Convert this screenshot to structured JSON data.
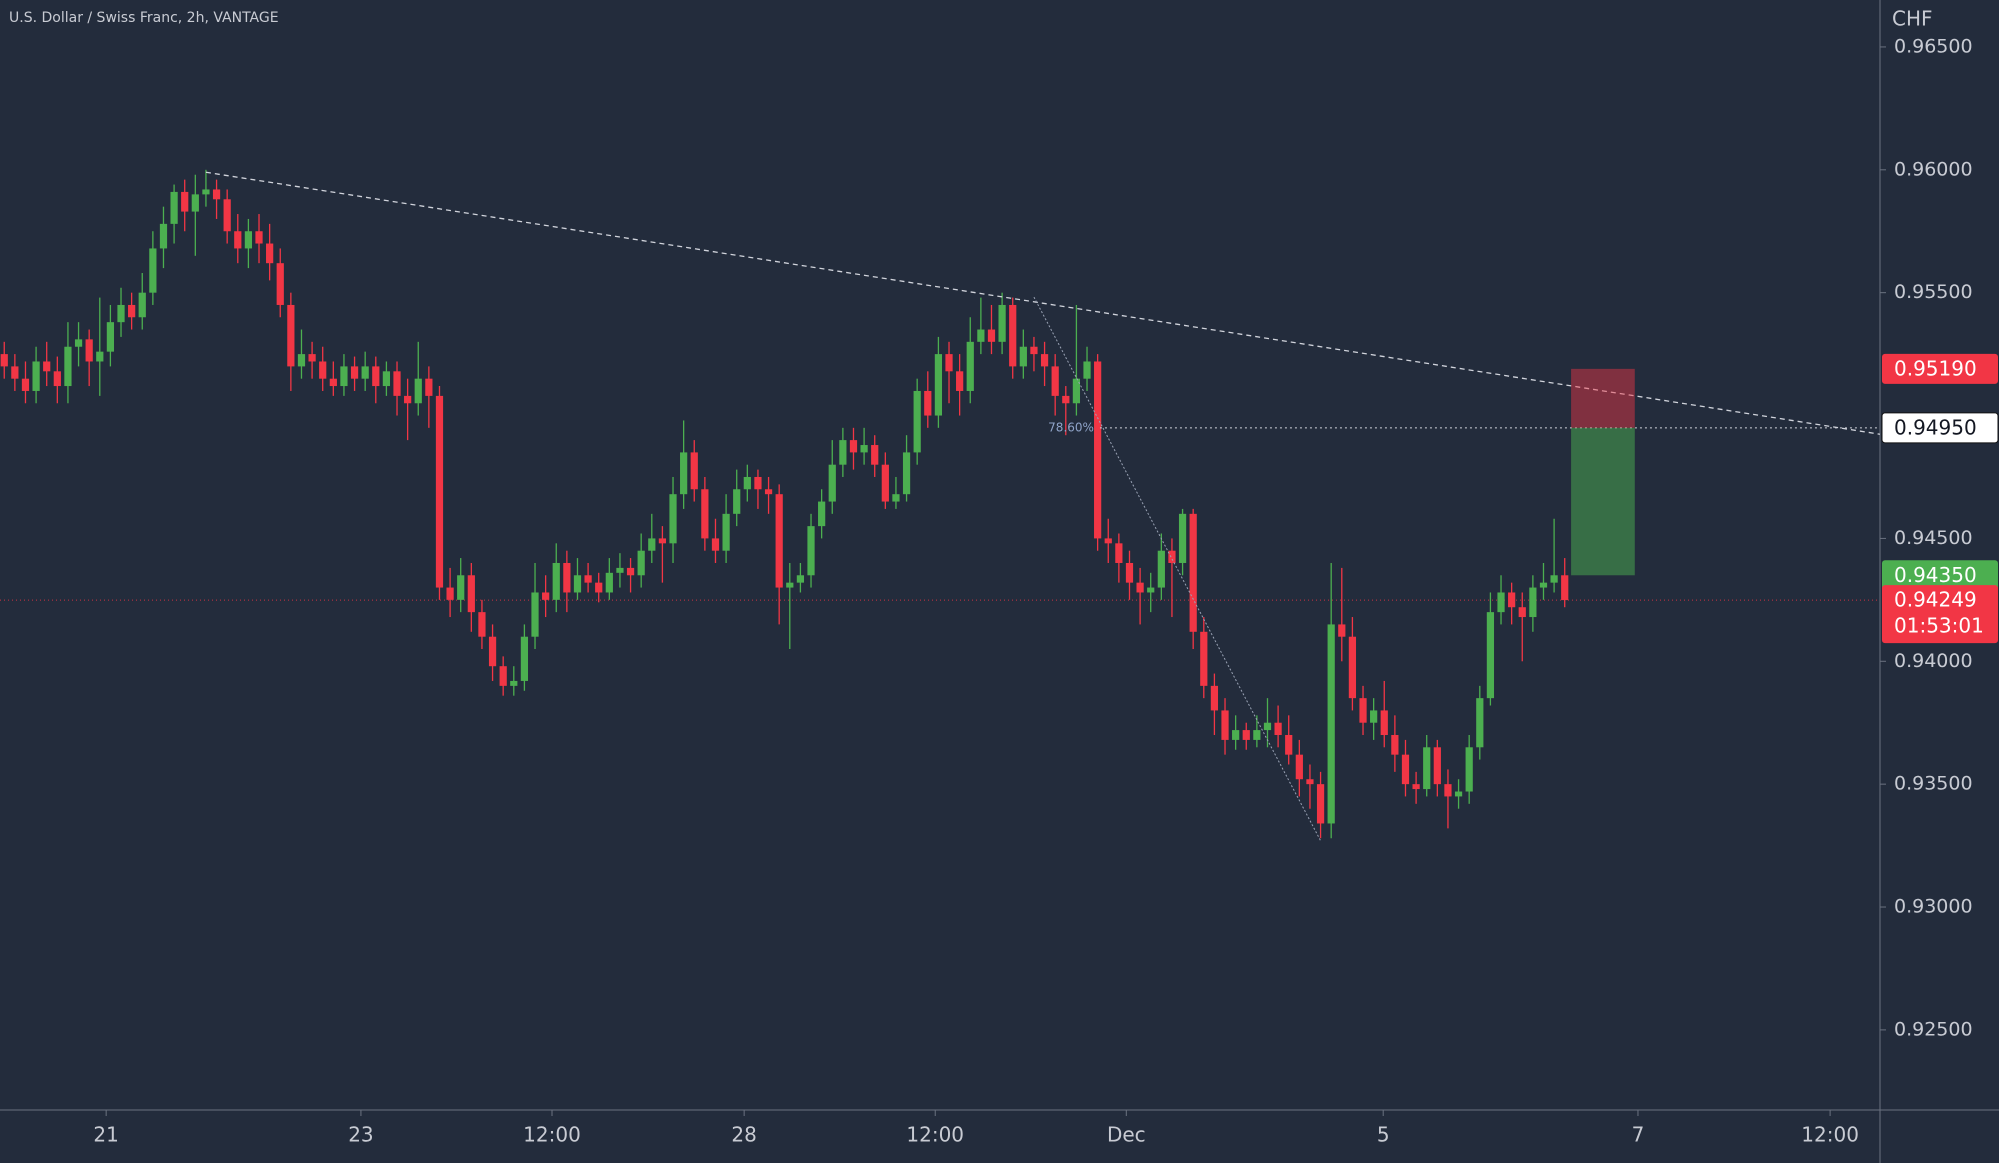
{
  "chart_data": {
    "type": "candlestick",
    "title": "U.S. Dollar / Swiss Franc, 2h, VANTAGE",
    "y_axis_label": "CHF",
    "up_color": "#4caf50",
    "down_color": "#f23645",
    "open": [
      0.9525,
      0.952,
      0.9515,
      0.951,
      0.9522,
      0.9518,
      0.9512,
      0.9528,
      0.9531,
      0.9522,
      0.9526,
      0.9538,
      0.9545,
      0.954,
      0.955,
      0.9568,
      0.9578,
      0.9591,
      0.9583,
      0.959,
      0.9592,
      0.9588,
      0.9575,
      0.9568,
      0.9575,
      0.957,
      0.9562,
      0.9545,
      0.952,
      0.9525,
      0.9522,
      0.9515,
      0.9512,
      0.952,
      0.9515,
      0.952,
      0.9512,
      0.9518,
      0.9508,
      0.9505,
      0.9515,
      0.9508,
      0.943,
      0.9425,
      0.9435,
      0.942,
      0.941,
      0.9398,
      0.939,
      0.9392,
      0.941,
      0.9428,
      0.9425,
      0.944,
      0.9428,
      0.9435,
      0.9432,
      0.9428,
      0.9436,
      0.9438,
      0.9435,
      0.9445,
      0.945,
      0.9448,
      0.9468,
      0.9485,
      0.947,
      0.945,
      0.9445,
      0.946,
      0.947,
      0.9475,
      0.947,
      0.9468,
      0.943,
      0.9432,
      0.9435,
      0.9455,
      0.9465,
      0.948,
      0.949,
      0.9485,
      0.9488,
      0.948,
      0.9465,
      0.9468,
      0.9485,
      0.951,
      0.95,
      0.9525,
      0.9518,
      0.951,
      0.953,
      0.9535,
      0.953,
      0.9545,
      0.952,
      0.9528,
      0.9525,
      0.952,
      0.9508,
      0.9505,
      0.9515,
      0.9522,
      0.945,
      0.9448,
      0.944,
      0.9432,
      0.9428,
      0.943,
      0.9445,
      0.944,
      0.946,
      0.9412,
      0.939,
      0.938,
      0.9368,
      0.9372,
      0.9368,
      0.9372,
      0.9375,
      0.937,
      0.9362,
      0.9352,
      0.935,
      0.9334,
      0.9415,
      0.941,
      0.9385,
      0.9375,
      0.938,
      0.937,
      0.9362,
      0.935,
      0.9348,
      0.9365,
      0.935,
      0.9345,
      0.9347,
      0.9365,
      0.9385,
      0.942,
      0.9428,
      0.9422,
      0.9418,
      0.943,
      0.9432,
      0.9435
    ],
    "high": [
      0.953,
      0.9525,
      0.9522,
      0.9528,
      0.953,
      0.9524,
      0.9538,
      0.9538,
      0.9535,
      0.9548,
      0.9545,
      0.9552,
      0.955,
      0.9558,
      0.9575,
      0.9585,
      0.9594,
      0.9596,
      0.9598,
      0.96,
      0.9596,
      0.9592,
      0.9582,
      0.958,
      0.9582,
      0.9578,
      0.9568,
      0.955,
      0.9535,
      0.953,
      0.9528,
      0.9522,
      0.9525,
      0.9524,
      0.9526,
      0.9524,
      0.9522,
      0.9522,
      0.9515,
      0.953,
      0.952,
      0.9512,
      0.9438,
      0.9442,
      0.944,
      0.9425,
      0.9415,
      0.9402,
      0.9398,
      0.9415,
      0.944,
      0.9435,
      0.9448,
      0.9445,
      0.9442,
      0.944,
      0.9436,
      0.9442,
      0.9444,
      0.9442,
      0.9452,
      0.946,
      0.9455,
      0.9475,
      0.9498,
      0.949,
      0.9475,
      0.9458,
      0.9468,
      0.9478,
      0.948,
      0.9478,
      0.9475,
      0.9472,
      0.944,
      0.944,
      0.946,
      0.947,
      0.949,
      0.9495,
      0.9495,
      0.9495,
      0.9492,
      0.9485,
      0.9475,
      0.9492,
      0.9515,
      0.9518,
      0.9532,
      0.953,
      0.9525,
      0.954,
      0.9548,
      0.9545,
      0.955,
      0.9548,
      0.9535,
      0.9532,
      0.953,
      0.9525,
      0.9512,
      0.9545,
      0.9528,
      0.9525,
      0.9458,
      0.9452,
      0.9445,
      0.9438,
      0.9436,
      0.9452,
      0.945,
      0.9462,
      0.9462,
      0.9418,
      0.9395,
      0.9385,
      0.9378,
      0.9375,
      0.9378,
      0.9385,
      0.9382,
      0.9378,
      0.9368,
      0.9358,
      0.9355,
      0.944,
      0.9438,
      0.9418,
      0.939,
      0.9385,
      0.9392,
      0.9378,
      0.9368,
      0.9355,
      0.937,
      0.9368,
      0.9356,
      0.9352,
      0.937,
      0.939,
      0.9428,
      0.9435,
      0.9432,
      0.9428,
      0.9435,
      0.944,
      0.9458,
      0.9442
    ],
    "low": [
      0.9515,
      0.951,
      0.9505,
      0.9505,
      0.9512,
      0.9505,
      0.9505,
      0.952,
      0.9512,
      0.9508,
      0.952,
      0.9532,
      0.9535,
      0.9535,
      0.9545,
      0.956,
      0.957,
      0.9575,
      0.9565,
      0.9585,
      0.958,
      0.957,
      0.9562,
      0.956,
      0.9562,
      0.9555,
      0.954,
      0.951,
      0.9515,
      0.9515,
      0.951,
      0.9508,
      0.9508,
      0.951,
      0.951,
      0.9505,
      0.9508,
      0.95,
      0.949,
      0.95,
      0.9495,
      0.9425,
      0.9418,
      0.942,
      0.9412,
      0.9405,
      0.9392,
      0.9386,
      0.9386,
      0.9388,
      0.9405,
      0.9418,
      0.942,
      0.942,
      0.9425,
      0.9428,
      0.9424,
      0.9425,
      0.943,
      0.9428,
      0.943,
      0.944,
      0.9432,
      0.944,
      0.9462,
      0.9465,
      0.9445,
      0.944,
      0.944,
      0.9455,
      0.9465,
      0.9462,
      0.946,
      0.9415,
      0.9405,
      0.9428,
      0.943,
      0.945,
      0.946,
      0.9475,
      0.9478,
      0.948,
      0.9475,
      0.9462,
      0.9462,
      0.9465,
      0.948,
      0.9495,
      0.9495,
      0.9505,
      0.95,
      0.9505,
      0.9525,
      0.9525,
      0.9525,
      0.9515,
      0.9515,
      0.9518,
      0.9512,
      0.95,
      0.9492,
      0.95,
      0.951,
      0.9445,
      0.944,
      0.9432,
      0.9425,
      0.9415,
      0.942,
      0.9425,
      0.9418,
      0.9435,
      0.9405,
      0.9385,
      0.937,
      0.9362,
      0.9364,
      0.9364,
      0.9365,
      0.9365,
      0.9365,
      0.9358,
      0.9345,
      0.934,
      0.9328,
      0.9328,
      0.94,
      0.938,
      0.937,
      0.9368,
      0.9365,
      0.9355,
      0.9345,
      0.9342,
      0.9345,
      0.9345,
      0.9332,
      0.934,
      0.9342,
      0.936,
      0.9382,
      0.9415,
      0.9415,
      0.94,
      0.9412,
      0.9425,
      0.9428,
      0.9422
    ],
    "close": [
      0.952,
      0.9515,
      0.951,
      0.9522,
      0.9518,
      0.9512,
      0.9528,
      0.9531,
      0.9522,
      0.9526,
      0.9538,
      0.9545,
      0.954,
      0.955,
      0.9568,
      0.9578,
      0.9591,
      0.9583,
      0.959,
      0.9592,
      0.9588,
      0.9575,
      0.9568,
      0.9575,
      0.957,
      0.9562,
      0.9545,
      0.952,
      0.9525,
      0.9522,
      0.9515,
      0.9512,
      0.952,
      0.9515,
      0.952,
      0.9512,
      0.9518,
      0.9508,
      0.9505,
      0.9515,
      0.9508,
      0.943,
      0.9425,
      0.9435,
      0.942,
      0.941,
      0.9398,
      0.939,
      0.9392,
      0.941,
      0.9428,
      0.9425,
      0.944,
      0.9428,
      0.9435,
      0.9432,
      0.9428,
      0.9436,
      0.9438,
      0.9435,
      0.9445,
      0.945,
      0.9448,
      0.9468,
      0.9485,
      0.947,
      0.945,
      0.9445,
      0.946,
      0.947,
      0.9475,
      0.947,
      0.9468,
      0.943,
      0.9432,
      0.9435,
      0.9455,
      0.9465,
      0.948,
      0.949,
      0.9485,
      0.9488,
      0.948,
      0.9465,
      0.9468,
      0.9485,
      0.951,
      0.95,
      0.9525,
      0.9518,
      0.951,
      0.953,
      0.9535,
      0.953,
      0.9545,
      0.952,
      0.9528,
      0.9525,
      0.952,
      0.9508,
      0.9505,
      0.9515,
      0.9522,
      0.945,
      0.9448,
      0.944,
      0.9432,
      0.9428,
      0.943,
      0.9445,
      0.944,
      0.946,
      0.9412,
      0.939,
      0.938,
      0.9368,
      0.9372,
      0.9368,
      0.9372,
      0.9375,
      0.937,
      0.9362,
      0.9352,
      0.935,
      0.9334,
      0.9415,
      0.941,
      0.9385,
      0.9375,
      0.938,
      0.937,
      0.9362,
      0.935,
      0.9348,
      0.9365,
      0.935,
      0.9345,
      0.9347,
      0.9365,
      0.9385,
      0.942,
      0.9428,
      0.9422,
      0.9418,
      0.943,
      0.9432,
      0.9435,
      0.94249
    ],
    "xlim": [
      -0.4,
      176.7
    ],
    "xticks": [
      {
        "value": 9.6,
        "label": "21"
      },
      {
        "value": 33.6,
        "label": "23"
      },
      {
        "value": 51.6,
        "label": "12:00"
      },
      {
        "value": 69.7,
        "label": "28"
      },
      {
        "value": 87.7,
        "label": "12:00"
      },
      {
        "value": 105.7,
        "label": "Dec"
      },
      {
        "value": 129.9,
        "label": "5"
      },
      {
        "value": 153.9,
        "label": "7"
      },
      {
        "value": 172,
        "label": "12:00"
      }
    ],
    "ylim": [
      0.92174,
      0.96691
    ],
    "yticks": [
      {
        "value": 0.925,
        "label": "0.92500"
      },
      {
        "value": 0.93,
        "label": "0.93000"
      },
      {
        "value": 0.935,
        "label": "0.93500"
      },
      {
        "value": 0.94,
        "label": "0.94000"
      },
      {
        "value": 0.945,
        "label": "0.94500"
      },
      {
        "value": 0.955,
        "label": "0.95500"
      },
      {
        "value": 0.96,
        "label": "0.96000"
      },
      {
        "value": 0.965,
        "label": "0.96500"
      }
    ],
    "trendline": {
      "x": [
        19,
        176.7
      ],
      "y": [
        0.9599,
        0.94924
      ]
    },
    "fib": {
      "label": "78.60%",
      "x": [
        97,
        124
      ],
      "y": [
        0.95482,
        0.9327
      ],
      "level": 0.9495
    },
    "position": {
      "x": [
        147.6,
        153.6
      ],
      "stop": 0.9519,
      "entry": 0.9495,
      "target": 0.9435,
      "stop_color": "#f23645",
      "target_color": "#4caf50"
    },
    "price_labels": [
      {
        "value": 0.9519,
        "label": "0.95190",
        "color": "#f23645"
      },
      {
        "value": 0.9495,
        "label": "0.94950",
        "color": "#ffffff"
      },
      {
        "value": 0.9435,
        "label": "0.94350",
        "color": "#4caf50"
      }
    ],
    "last_price": {
      "value": 0.94249,
      "label": "0.94249",
      "countdown": "01:53:01",
      "color": "#f23645"
    }
  }
}
